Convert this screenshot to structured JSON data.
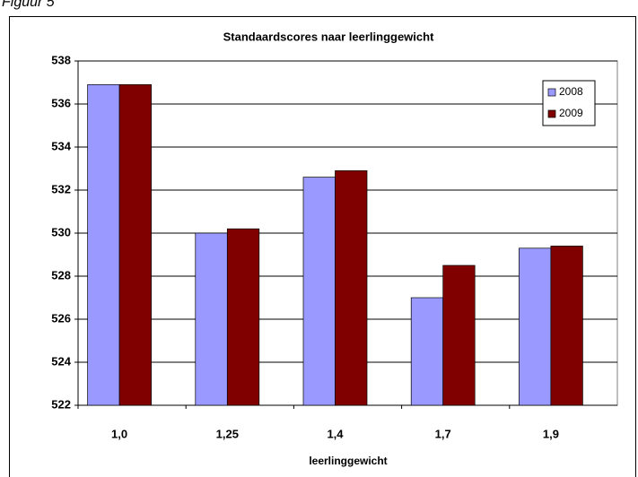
{
  "caption": "Figuur 5",
  "chart_data": {
    "type": "bar",
    "title": "Standaardscores naar leerlinggewicht",
    "x_label": "leerlinggewicht",
    "categories": [
      "1,0",
      "1,25",
      "1,4",
      "1,7",
      "1,9"
    ],
    "series": [
      {
        "name": "2008",
        "color": "#9999ff",
        "values": [
          536.9,
          530.0,
          532.6,
          527.0,
          529.3
        ]
      },
      {
        "name": "2009",
        "color": "#800000",
        "values": [
          536.9,
          530.2,
          532.9,
          528.5,
          529.4
        ]
      }
    ],
    "ylim": [
      522,
      538
    ],
    "yticks": [
      522,
      524,
      526,
      528,
      530,
      532,
      534,
      536,
      538
    ],
    "grid": true,
    "legend": "top-right"
  }
}
